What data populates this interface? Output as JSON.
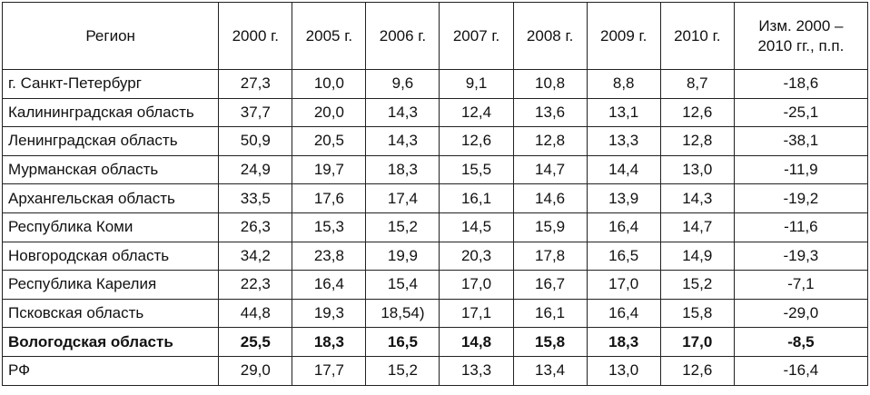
{
  "table": {
    "header": {
      "region": "Регион",
      "years": [
        "2000 г.",
        "2005 г.",
        "2006 г.",
        "2007 г.",
        "2008 г.",
        "2009 г.",
        "2010 г."
      ],
      "change_line1": "Изм. 2000 –",
      "change_line2": "2010 гг., п.п."
    },
    "rows": [
      {
        "region": "г. Санкт-Петербург",
        "values": [
          "27,3",
          "10,0",
          "9,6",
          "9,1",
          "10,8",
          "8,8",
          "8,7",
          "-18,6"
        ]
      },
      {
        "region": "Калининградская область",
        "values": [
          "37,7",
          "20,0",
          "14,3",
          "12,4",
          "13,6",
          "13,1",
          "12,6",
          "-25,1"
        ]
      },
      {
        "region": "Ленинградская область",
        "values": [
          "50,9",
          "20,5",
          "14,3",
          "12,6",
          "12,8",
          "13,3",
          "12,8",
          "-38,1"
        ]
      },
      {
        "region": "Мурманская область",
        "values": [
          "24,9",
          "19,7",
          "18,3",
          "15,5",
          "14,7",
          "14,4",
          "13,0",
          "-11,9"
        ]
      },
      {
        "region": "Архангельская область",
        "values": [
          "33,5",
          "17,6",
          "17,4",
          "16,1",
          "14,6",
          "13,9",
          "14,3",
          "-19,2"
        ]
      },
      {
        "region": "Республика Коми",
        "values": [
          "26,3",
          "15,3",
          "15,2",
          "14,5",
          "15,9",
          "16,4",
          "14,7",
          "-11,6"
        ]
      },
      {
        "region": "Новгородская область",
        "values": [
          "34,2",
          "23,8",
          "19,9",
          "20,3",
          "17,8",
          "16,5",
          "14,9",
          "-19,3"
        ]
      },
      {
        "region": "Республика Карелия",
        "values": [
          "22,3",
          "16,4",
          "15,4",
          "17,0",
          "16,7",
          "17,0",
          "15,2",
          "-7,1"
        ]
      },
      {
        "region": "Псковская область",
        "values": [
          "44,8",
          "19,3",
          "18,54)",
          "17,1",
          "16,1",
          "16,4",
          "15,8",
          "-29,0"
        ]
      },
      {
        "region": "Вологодская область",
        "values": [
          "25,5",
          "18,3",
          "16,5",
          "14,8",
          "15,8",
          "18,3",
          "17,0",
          "-8,5"
        ]
      },
      {
        "region": "РФ",
        "values": [
          "29,0",
          "17,7",
          "15,2",
          "13,3",
          "13,4",
          "13,0",
          "12,6",
          "-16,4"
        ]
      }
    ]
  }
}
